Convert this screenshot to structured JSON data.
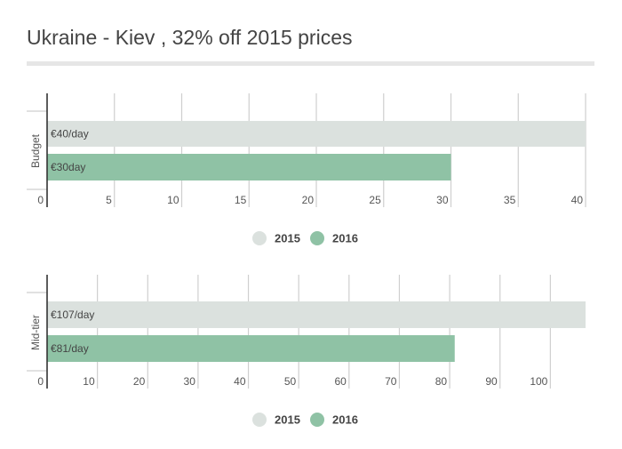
{
  "title": "Ukraine - Kiev , 32% off 2015 prices",
  "colors": {
    "series_2015": "#dbe1de",
    "series_2016": "#8fc2a5",
    "grid": "#cfcfcf",
    "axis": "#333333",
    "text": "#555555"
  },
  "legend": [
    {
      "label": "2015",
      "color": "#dbe1de"
    },
    {
      "label": "2016",
      "color": "#8fc2a5"
    }
  ],
  "chart_data": [
    {
      "type": "bar",
      "orientation": "horizontal",
      "category": "Budget",
      "xlim": [
        0,
        40
      ],
      "ticks": [
        0,
        5,
        10,
        15,
        20,
        25,
        30,
        35,
        40
      ],
      "grid": true,
      "legend_position": "bottom",
      "series": [
        {
          "name": "2015",
          "value": 40,
          "label": "€40/day",
          "color": "#dbe1de"
        },
        {
          "name": "2016",
          "value": 30,
          "label": "€30day",
          "color": "#8fc2a5"
        }
      ]
    },
    {
      "type": "bar",
      "orientation": "horizontal",
      "category": "Mid-tier",
      "xlim": [
        0,
        107
      ],
      "ticks": [
        0,
        10,
        20,
        30,
        40,
        50,
        60,
        70,
        80,
        90,
        100
      ],
      "grid": true,
      "legend_position": "bottom",
      "series": [
        {
          "name": "2015",
          "value": 107,
          "label": "€107/day",
          "color": "#dbe1de"
        },
        {
          "name": "2016",
          "value": 81,
          "label": "€81/day",
          "color": "#8fc2a5"
        }
      ]
    }
  ]
}
